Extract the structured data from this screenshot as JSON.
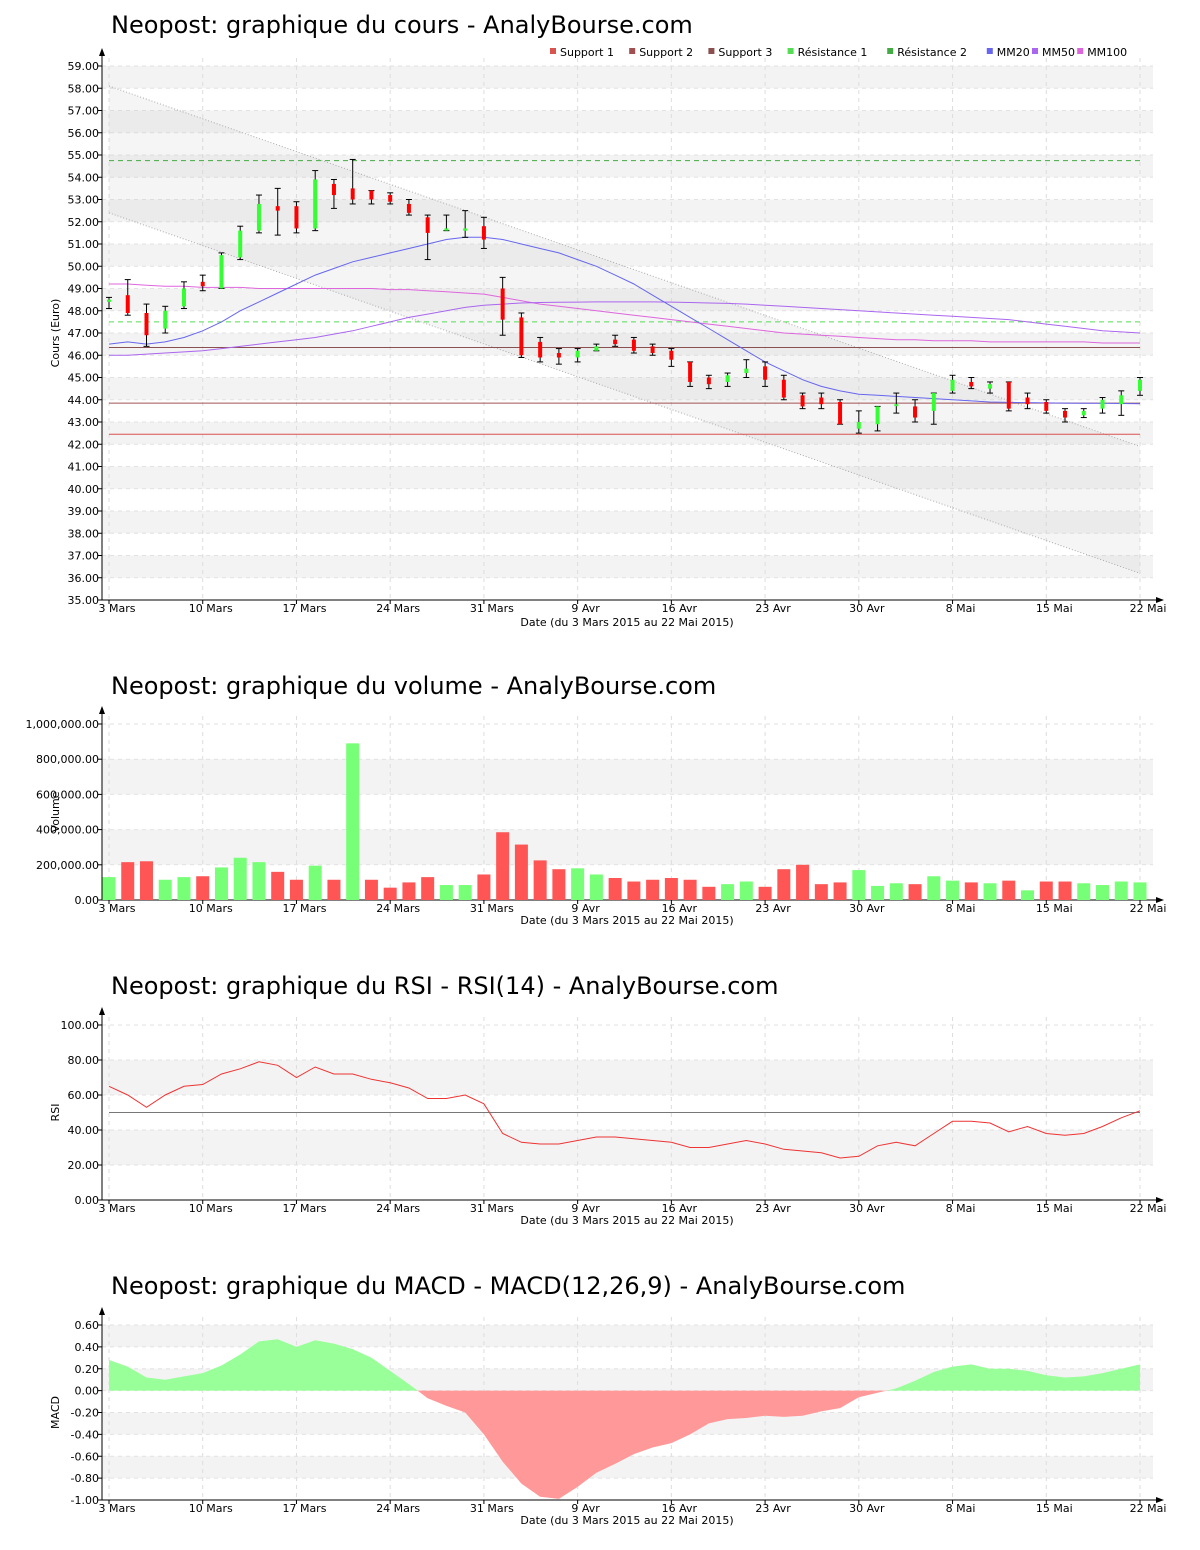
{
  "colors": {
    "up": "#33ff33",
    "down": "#ff0000",
    "up_bar": "#77ff77",
    "down_bar": "#ff5555",
    "support1": "#d9534f",
    "support2": "#a05050",
    "support3": "#8a5050",
    "resistance1": "#55dd55",
    "resistance2": "#44aa44",
    "mm20": "#6666ee",
    "mm50": "#aa66ee",
    "mm100": "#dd66dd",
    "rsi": "#ee3333",
    "macd_pos": "#99ff99",
    "macd_neg": "#ff9999"
  },
  "x_axis": {
    "date_label": "Date (du 3 Mars 2015 au 22 Mai 2015)",
    "ticks": [
      {
        "idx": 0,
        "label": "3 Mars"
      },
      {
        "idx": 5,
        "label": "10 Mars"
      },
      {
        "idx": 10,
        "label": "17 Mars"
      },
      {
        "idx": 15,
        "label": "24 Mars"
      },
      {
        "idx": 20,
        "label": "31 Mars"
      },
      {
        "idx": 25,
        "label": "9 Avr"
      },
      {
        "idx": 30,
        "label": "16 Avr"
      },
      {
        "idx": 35,
        "label": "23 Avr"
      },
      {
        "idx": 40,
        "label": "30 Avr"
      },
      {
        "idx": 45,
        "label": "8 Mai"
      },
      {
        "idx": 50,
        "label": "15 Mai"
      },
      {
        "idx": 55,
        "label": "22 Mai"
      }
    ]
  },
  "price": {
    "title": "Neopost: graphique du cours - AnalyBourse.com",
    "ylabel": "Cours (Euro)",
    "ylim": [
      35,
      59
    ],
    "yticks": [
      "35.00",
      "36.00",
      "37.00",
      "38.00",
      "39.00",
      "40.00",
      "41.00",
      "42.00",
      "43.00",
      "44.00",
      "45.00",
      "46.00",
      "47.00",
      "48.00",
      "49.00",
      "50.00",
      "51.00",
      "52.00",
      "53.00",
      "54.00",
      "55.00",
      "56.00",
      "57.00",
      "58.00",
      "59.00"
    ],
    "legend": [
      {
        "label": "Support 1",
        "color": "#d9534f"
      },
      {
        "label": "Support 2",
        "color": "#a05050"
      },
      {
        "label": "Support 3",
        "color": "#8a5050"
      },
      {
        "label": "Résistance 1",
        "color": "#55dd55"
      },
      {
        "label": "Résistance 2",
        "color": "#44aa44"
      },
      {
        "label": "MM20",
        "color": "#6666ee"
      },
      {
        "label": "MM50",
        "color": "#aa66ee"
      },
      {
        "label": "MM100",
        "color": "#dd66dd"
      }
    ],
    "levels": {
      "support1": 42.45,
      "support2": 43.85,
      "support3": 46.35,
      "resistance1": 47.5,
      "resistance2": 54.75
    },
    "channel": {
      "upper": [
        58.1,
        41.9
      ],
      "lower": [
        52.4,
        36.2
      ]
    },
    "candles": [
      [
        48.4,
        48.6,
        48.1,
        48.5
      ],
      [
        48.7,
        49.4,
        47.8,
        47.9
      ],
      [
        47.9,
        48.3,
        46.4,
        46.9
      ],
      [
        47.2,
        48.2,
        47.0,
        48.0
      ],
      [
        48.2,
        49.3,
        48.1,
        49.0
      ],
      [
        49.3,
        49.6,
        48.9,
        49.1
      ],
      [
        49.0,
        50.6,
        49.0,
        50.5
      ],
      [
        50.4,
        51.8,
        50.3,
        51.6
      ],
      [
        51.6,
        53.2,
        51.5,
        52.8
      ],
      [
        52.7,
        53.5,
        51.4,
        52.5
      ],
      [
        52.7,
        52.9,
        51.5,
        51.7
      ],
      [
        51.7,
        54.3,
        51.6,
        53.9
      ],
      [
        53.7,
        53.9,
        52.6,
        53.2
      ],
      [
        53.5,
        54.8,
        52.8,
        53.0
      ],
      [
        53.4,
        53.4,
        52.8,
        53.0
      ],
      [
        53.2,
        53.3,
        52.8,
        52.9
      ],
      [
        52.8,
        53.0,
        52.3,
        52.4
      ],
      [
        52.2,
        52.3,
        50.3,
        51.5
      ],
      [
        51.6,
        52.3,
        51.6,
        51.7
      ],
      [
        51.6,
        52.5,
        51.3,
        51.7
      ],
      [
        51.8,
        52.2,
        50.8,
        51.2
      ],
      [
        49.0,
        49.5,
        46.9,
        47.6
      ],
      [
        47.7,
        47.9,
        45.9,
        46.0
      ],
      [
        46.6,
        46.8,
        45.7,
        45.9
      ],
      [
        46.1,
        46.3,
        45.6,
        45.9
      ],
      [
        45.9,
        46.3,
        45.7,
        46.2
      ],
      [
        46.2,
        46.5,
        46.2,
        46.4
      ],
      [
        46.7,
        46.9,
        46.4,
        46.5
      ],
      [
        46.7,
        46.8,
        46.1,
        46.2
      ],
      [
        46.4,
        46.5,
        46.0,
        46.1
      ],
      [
        46.2,
        46.3,
        45.5,
        45.8
      ],
      [
        45.7,
        45.7,
        44.6,
        44.8
      ],
      [
        45.0,
        45.1,
        44.5,
        44.7
      ],
      [
        44.8,
        45.2,
        44.6,
        45.1
      ],
      [
        45.2,
        45.8,
        45.0,
        45.4
      ],
      [
        45.5,
        45.7,
        44.6,
        44.9
      ],
      [
        44.9,
        45.1,
        44.0,
        44.1
      ],
      [
        44.2,
        44.3,
        43.6,
        43.7
      ],
      [
        44.1,
        44.3,
        43.6,
        43.8
      ],
      [
        43.9,
        44.0,
        42.9,
        42.9
      ],
      [
        42.7,
        43.5,
        42.5,
        43.0
      ],
      [
        42.9,
        43.7,
        42.6,
        43.7
      ],
      [
        43.8,
        44.3,
        43.4,
        43.8
      ],
      [
        43.7,
        44.0,
        43.0,
        43.2
      ],
      [
        43.5,
        44.3,
        42.9,
        44.3
      ],
      [
        44.4,
        45.1,
        44.3,
        44.9
      ],
      [
        44.8,
        45.0,
        44.5,
        44.6
      ],
      [
        44.5,
        44.8,
        44.3,
        44.7
      ],
      [
        44.8,
        44.8,
        43.5,
        43.6
      ],
      [
        44.1,
        44.3,
        43.6,
        43.8
      ],
      [
        43.9,
        44.0,
        43.4,
        43.5
      ],
      [
        43.5,
        43.6,
        43.0,
        43.2
      ],
      [
        43.3,
        43.6,
        43.2,
        43.5
      ],
      [
        43.6,
        44.1,
        43.4,
        44.0
      ],
      [
        43.8,
        44.4,
        43.3,
        44.2
      ],
      [
        44.4,
        45.0,
        44.2,
        44.9
      ]
    ],
    "mm20": [
      46.5,
      46.6,
      46.5,
      46.6,
      46.8,
      47.1,
      47.5,
      48.0,
      48.4,
      48.8,
      49.2,
      49.6,
      49.9,
      50.2,
      50.4,
      50.6,
      50.8,
      51.0,
      51.2,
      51.3,
      51.3,
      51.2,
      51.0,
      50.8,
      50.6,
      50.3,
      50.0,
      49.6,
      49.2,
      48.7,
      48.2,
      47.7,
      47.2,
      46.7,
      46.2,
      45.7,
      45.3,
      44.9,
      44.6,
      44.4,
      44.25,
      44.2,
      44.15,
      44.1,
      44.05,
      44.0,
      43.95,
      43.9,
      43.88,
      43.87,
      43.86,
      43.85,
      43.84,
      43.84,
      43.83,
      43.82
    ],
    "mm50": [
      46.0,
      46.0,
      46.05,
      46.1,
      46.15,
      46.2,
      46.3,
      46.4,
      46.5,
      46.6,
      46.7,
      46.8,
      46.95,
      47.1,
      47.3,
      47.5,
      47.7,
      47.85,
      48.0,
      48.15,
      48.25,
      48.3,
      48.35,
      48.37,
      48.38,
      48.39,
      48.4,
      48.4,
      48.4,
      48.4,
      48.39,
      48.37,
      48.35,
      48.33,
      48.3,
      48.25,
      48.2,
      48.15,
      48.1,
      48.05,
      48.0,
      47.95,
      47.9,
      47.85,
      47.8,
      47.75,
      47.7,
      47.65,
      47.6,
      47.5,
      47.4,
      47.3,
      47.2,
      47.1,
      47.05,
      47.0
    ],
    "mm100": [
      49.2,
      49.2,
      49.15,
      49.1,
      49.1,
      49.05,
      49.05,
      49.05,
      49.0,
      49.0,
      49.0,
      49.0,
      49.0,
      49.0,
      49.0,
      48.95,
      48.95,
      48.9,
      48.85,
      48.8,
      48.75,
      48.6,
      48.45,
      48.3,
      48.2,
      48.1,
      48.0,
      47.9,
      47.8,
      47.7,
      47.6,
      47.5,
      47.4,
      47.3,
      47.2,
      47.1,
      47.0,
      46.95,
      46.9,
      46.85,
      46.8,
      46.75,
      46.7,
      46.7,
      46.65,
      46.65,
      46.65,
      46.6,
      46.6,
      46.6,
      46.6,
      46.6,
      46.6,
      46.55,
      46.55,
      46.55
    ]
  },
  "volume": {
    "title": "Neopost: graphique du volume - AnalyBourse.com",
    "ylabel": "Volume",
    "ylim": [
      0,
      1000000
    ],
    "yticks": [
      "0.00",
      "200,000.00",
      "400,000.00",
      "600,000.00",
      "800,000.00",
      "1,000,000.00"
    ],
    "values": [
      130000,
      215000,
      220000,
      115000,
      130000,
      135000,
      185000,
      240000,
      215000,
      160000,
      115000,
      195000,
      115000,
      890000,
      115000,
      70000,
      100000,
      130000,
      85000,
      85000,
      145000,
      385000,
      315000,
      225000,
      175000,
      180000,
      145000,
      125000,
      105000,
      115000,
      125000,
      115000,
      75000,
      90000,
      105000,
      75000,
      175000,
      200000,
      90000,
      100000,
      170000,
      80000,
      95000,
      90000,
      135000,
      110000,
      100000,
      95000,
      110000,
      55000,
      105000,
      105000,
      95000,
      85000,
      105000,
      100000
    ],
    "up": [
      1,
      0,
      0,
      1,
      1,
      0,
      1,
      1,
      1,
      0,
      0,
      1,
      0,
      1,
      0,
      0,
      0,
      0,
      1,
      1,
      0,
      0,
      0,
      0,
      0,
      1,
      1,
      0,
      0,
      0,
      0,
      0,
      0,
      1,
      1,
      0,
      0,
      0,
      0,
      0,
      1,
      1,
      1,
      0,
      1,
      1,
      0,
      1,
      0,
      1,
      0,
      0,
      1,
      1,
      1,
      1
    ]
  },
  "rsi": {
    "title": "Neopost: graphique du RSI - RSI(14) - AnalyBourse.com",
    "ylabel": "RSI",
    "ylim": [
      0,
      100
    ],
    "yticks": [
      "0.00",
      "20.00",
      "40.00",
      "60.00",
      "80.00",
      "100.00"
    ],
    "reference": 50,
    "values": [
      65,
      60,
      53,
      60,
      65,
      66,
      72,
      75,
      79,
      77,
      70,
      76,
      72,
      72,
      69,
      67,
      64,
      58,
      58,
      60,
      55,
      38,
      33,
      32,
      32,
      34,
      36,
      36,
      35,
      34,
      33,
      30,
      30,
      32,
      34,
      32,
      29,
      28,
      27,
      24,
      25,
      31,
      33,
      31,
      38,
      45,
      45,
      44,
      39,
      42,
      38,
      37,
      38,
      42,
      47,
      51
    ]
  },
  "macd": {
    "title": "Neopost: graphique du MACD - MACD(12,26,9) - AnalyBourse.com",
    "ylabel": "MACD",
    "ylim": [
      -1.0,
      0.6
    ],
    "yticks": [
      "-1.00",
      "-0.80",
      "-0.60",
      "-0.40",
      "-0.20",
      "0.00",
      "0.20",
      "0.40",
      "0.60"
    ],
    "values": [
      0.28,
      0.22,
      0.12,
      0.1,
      0.13,
      0.16,
      0.23,
      0.33,
      0.45,
      0.47,
      0.4,
      0.46,
      0.43,
      0.38,
      0.3,
      0.18,
      0.06,
      -0.07,
      -0.14,
      -0.2,
      -0.4,
      -0.65,
      -0.85,
      -0.97,
      -0.99,
      -0.88,
      -0.75,
      -0.67,
      -0.58,
      -0.52,
      -0.48,
      -0.4,
      -0.3,
      -0.26,
      -0.25,
      -0.23,
      -0.24,
      -0.23,
      -0.19,
      -0.16,
      -0.06,
      -0.02,
      0.02,
      0.09,
      0.17,
      0.22,
      0.24,
      0.2,
      0.2,
      0.18,
      0.14,
      0.12,
      0.13,
      0.16,
      0.2,
      0.24
    ]
  }
}
